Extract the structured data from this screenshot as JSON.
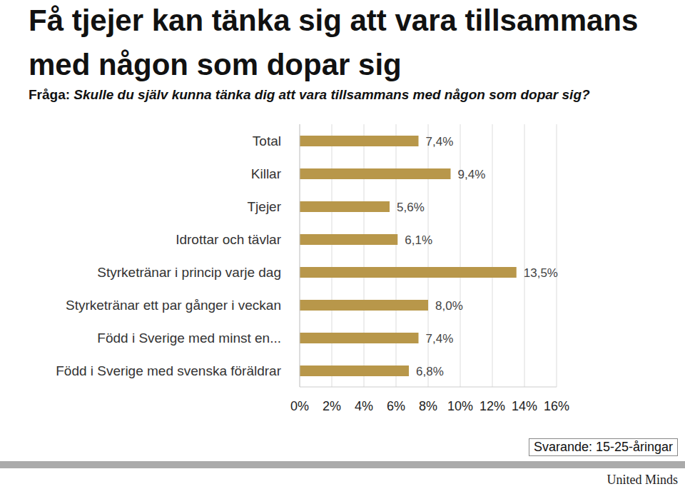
{
  "chart_data": {
    "type": "bar",
    "title": "Få tjejer kan tänka sig att vara tillsammans med någon som dopar sig",
    "subtitle": "Fråga: Skulle du själv kunna tänka dig att vara tillsammans med någon som dopar sig?",
    "categories": [
      "Total",
      "Killar",
      "Tjejer",
      "Idrottar och tävlar",
      "Styrketränar i princip varje dag",
      "Styrketränar ett par gånger i veckan",
      "Född i Sverige med minst en...",
      "Född i Sverige med svenska föräldrar"
    ],
    "values": [
      7.4,
      9.4,
      5.6,
      6.1,
      13.5,
      8.0,
      7.4,
      6.8
    ],
    "value_labels": [
      "7,4%",
      "9,4%",
      "5,6%",
      "6,1%",
      "13,5%",
      "8,0%",
      "7,4%",
      "6,8%"
    ],
    "color": "#b8974a",
    "orientation": "horizontal",
    "xlim": [
      0,
      16
    ],
    "xticks": [
      {
        "value": 0,
        "label": "0%"
      },
      {
        "value": 2,
        "label": "2%"
      },
      {
        "value": 4,
        "label": "4%"
      },
      {
        "value": 6,
        "label": "6%"
      },
      {
        "value": 8,
        "label": "8%"
      },
      {
        "value": 10,
        "label": "10%"
      },
      {
        "value": 12,
        "label": "12%"
      },
      {
        "value": 14,
        "label": "14%"
      },
      {
        "value": 16,
        "label": "16%"
      }
    ],
    "grid": true,
    "data_labels": true,
    "annotations": [
      "Svarande: 15-25-åringar",
      "United Minds"
    ]
  }
}
